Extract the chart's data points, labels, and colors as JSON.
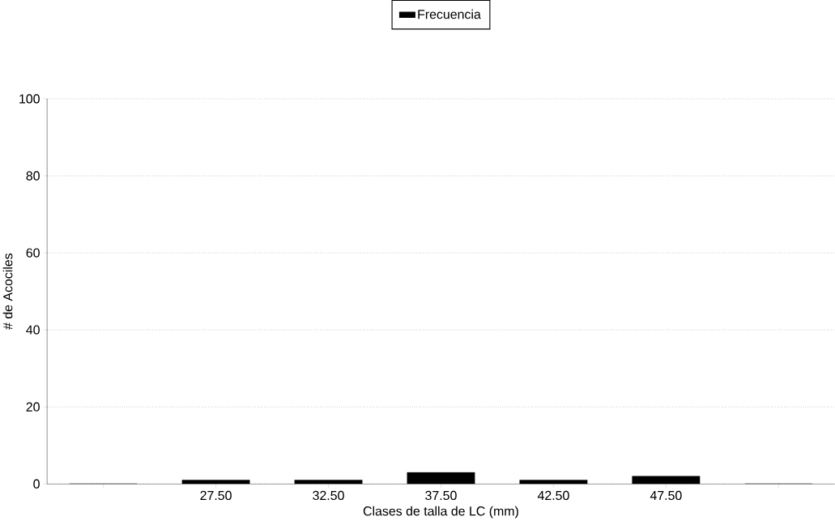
{
  "chart_data": {
    "type": "bar",
    "xlabel": "Clases de talla de LC (mm)",
    "ylabel": "# de Acociles",
    "categories": [
      null,
      "27.50",
      "32.50",
      "37.50",
      "42.50",
      "47.50",
      null
    ],
    "series": [
      {
        "name": "Frecuencia",
        "color": "#000000",
        "values": [
          0,
          1,
          1,
          3,
          1,
          2,
          0
        ]
      }
    ],
    "ylim": [
      0,
      100
    ],
    "yticks": [
      0,
      20,
      40,
      60,
      80,
      100
    ],
    "grid": "y",
    "legend": "top"
  }
}
